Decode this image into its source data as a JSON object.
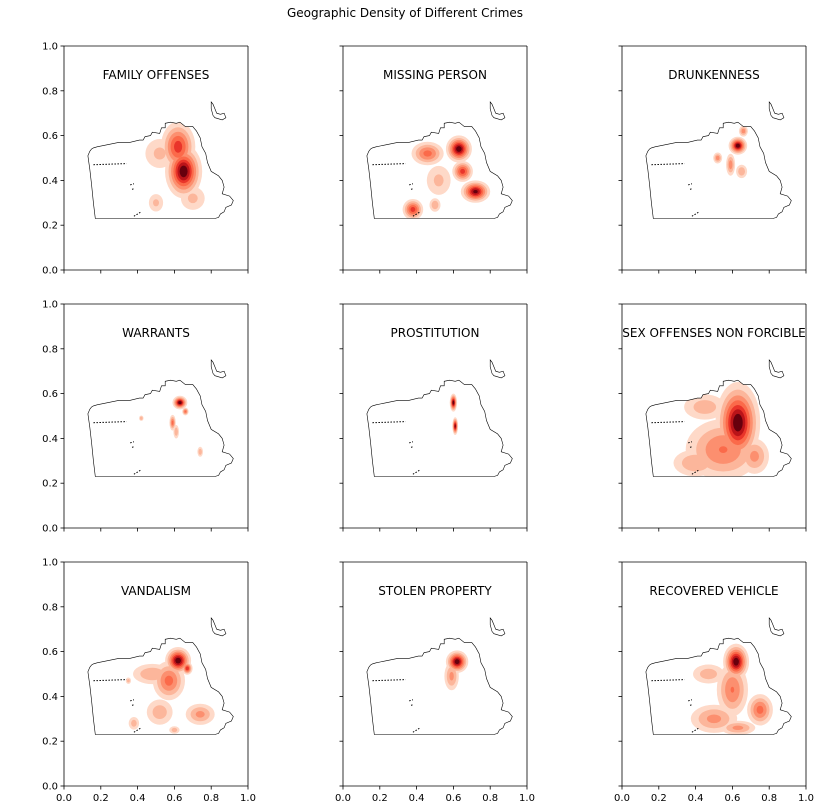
{
  "chart_data": {
    "type": "heatmap",
    "title": "Geographic Density of Different Crimes",
    "layout": {
      "rows": 3,
      "cols": 3,
      "sharex": true,
      "sharey": true
    },
    "xlim": [
      0,
      1
    ],
    "ylim": [
      0,
      1
    ],
    "xticks": [
      "0.0",
      "0.2",
      "0.4",
      "0.6",
      "0.8",
      "1.0"
    ],
    "yticks": [
      "0.0",
      "0.2",
      "0.4",
      "0.6",
      "0.8",
      "1.0"
    ],
    "colormap": {
      "name": "Reds",
      "light": "#fee0d2",
      "mid": "#fb6a4a",
      "dark": "#67000d"
    },
    "outline_color": "#000000",
    "panels": [
      {
        "title": "FAMILY OFFENSES",
        "hotspots": [
          {
            "x": 0.62,
            "y": 0.55,
            "sx": 0.05,
            "sy": 0.06,
            "w": 0.75
          },
          {
            "x": 0.65,
            "y": 0.44,
            "sx": 0.05,
            "sy": 0.06,
            "w": 1.0
          },
          {
            "x": 0.52,
            "y": 0.52,
            "sx": 0.06,
            "sy": 0.05,
            "w": 0.3
          },
          {
            "x": 0.5,
            "y": 0.3,
            "sx": 0.03,
            "sy": 0.03,
            "w": 0.3
          },
          {
            "x": 0.7,
            "y": 0.32,
            "sx": 0.05,
            "sy": 0.04,
            "w": 0.3
          }
        ]
      },
      {
        "title": "MISSING PERSON",
        "hotspots": [
          {
            "x": 0.63,
            "y": 0.54,
            "sx": 0.035,
            "sy": 0.03,
            "w": 1.0
          },
          {
            "x": 0.46,
            "y": 0.52,
            "sx": 0.05,
            "sy": 0.03,
            "w": 0.6
          },
          {
            "x": 0.65,
            "y": 0.44,
            "sx": 0.03,
            "sy": 0.025,
            "w": 0.75
          },
          {
            "x": 0.72,
            "y": 0.35,
            "sx": 0.04,
            "sy": 0.025,
            "w": 0.95
          },
          {
            "x": 0.38,
            "y": 0.27,
            "sx": 0.03,
            "sy": 0.025,
            "w": 0.75
          },
          {
            "x": 0.52,
            "y": 0.4,
            "sx": 0.05,
            "sy": 0.05,
            "w": 0.3
          },
          {
            "x": 0.5,
            "y": 0.29,
            "sx": 0.02,
            "sy": 0.02,
            "w": 0.4
          }
        ]
      },
      {
        "title": "DRUNKENNESS",
        "hotspots": [
          {
            "x": 0.63,
            "y": 0.555,
            "sx": 0.025,
            "sy": 0.02,
            "w": 1.0
          },
          {
            "x": 0.66,
            "y": 0.62,
            "sx": 0.015,
            "sy": 0.015,
            "w": 0.5
          },
          {
            "x": 0.52,
            "y": 0.5,
            "sx": 0.015,
            "sy": 0.015,
            "w": 0.5
          },
          {
            "x": 0.59,
            "y": 0.47,
            "sx": 0.015,
            "sy": 0.03,
            "w": 0.5
          },
          {
            "x": 0.65,
            "y": 0.44,
            "sx": 0.02,
            "sy": 0.02,
            "w": 0.4
          }
        ]
      },
      {
        "title": "WARRANTS",
        "hotspots": [
          {
            "x": 0.63,
            "y": 0.56,
            "sx": 0.02,
            "sy": 0.015,
            "w": 1.0
          },
          {
            "x": 0.59,
            "y": 0.47,
            "sx": 0.01,
            "sy": 0.02,
            "w": 0.6
          },
          {
            "x": 0.66,
            "y": 0.52,
            "sx": 0.01,
            "sy": 0.01,
            "w": 0.6
          },
          {
            "x": 0.61,
            "y": 0.43,
            "sx": 0.01,
            "sy": 0.02,
            "w": 0.4
          },
          {
            "x": 0.74,
            "y": 0.34,
            "sx": 0.01,
            "sy": 0.015,
            "w": 0.4
          },
          {
            "x": 0.42,
            "y": 0.49,
            "sx": 0.008,
            "sy": 0.008,
            "w": 0.4
          }
        ]
      },
      {
        "title": "PROSTITUTION",
        "hotspots": [
          {
            "x": 0.6,
            "y": 0.56,
            "sx": 0.01,
            "sy": 0.02,
            "w": 1.0
          },
          {
            "x": 0.61,
            "y": 0.455,
            "sx": 0.008,
            "sy": 0.02,
            "w": 0.95
          }
        ]
      },
      {
        "title": "SEX OFFENSES NON FORCIBLE",
        "hotspots": [
          {
            "x": 0.63,
            "y": 0.47,
            "sx": 0.06,
            "sy": 0.09,
            "w": 1.0
          },
          {
            "x": 0.55,
            "y": 0.35,
            "sx": 0.12,
            "sy": 0.08,
            "w": 0.55
          },
          {
            "x": 0.4,
            "y": 0.29,
            "sx": 0.08,
            "sy": 0.04,
            "w": 0.4
          },
          {
            "x": 0.45,
            "y": 0.54,
            "sx": 0.08,
            "sy": 0.04,
            "w": 0.35
          },
          {
            "x": 0.72,
            "y": 0.32,
            "sx": 0.05,
            "sy": 0.05,
            "w": 0.45
          }
        ]
      },
      {
        "title": "VANDALISM",
        "hotspots": [
          {
            "x": 0.62,
            "y": 0.56,
            "sx": 0.035,
            "sy": 0.03,
            "w": 1.0
          },
          {
            "x": 0.67,
            "y": 0.525,
            "sx": 0.015,
            "sy": 0.015,
            "w": 0.8
          },
          {
            "x": 0.57,
            "y": 0.47,
            "sx": 0.05,
            "sy": 0.05,
            "w": 0.6
          },
          {
            "x": 0.48,
            "y": 0.5,
            "sx": 0.07,
            "sy": 0.03,
            "w": 0.4
          },
          {
            "x": 0.74,
            "y": 0.32,
            "sx": 0.05,
            "sy": 0.03,
            "w": 0.45
          },
          {
            "x": 0.52,
            "y": 0.33,
            "sx": 0.05,
            "sy": 0.04,
            "w": 0.35
          },
          {
            "x": 0.38,
            "y": 0.28,
            "sx": 0.02,
            "sy": 0.02,
            "w": 0.35
          },
          {
            "x": 0.6,
            "y": 0.25,
            "sx": 0.02,
            "sy": 0.012,
            "w": 0.35
          },
          {
            "x": 0.35,
            "y": 0.47,
            "sx": 0.01,
            "sy": 0.01,
            "w": 0.35
          }
        ]
      },
      {
        "title": "STOLEN PROPERTY",
        "hotspots": [
          {
            "x": 0.62,
            "y": 0.555,
            "sx": 0.03,
            "sy": 0.025,
            "w": 1.0
          },
          {
            "x": 0.59,
            "y": 0.49,
            "sx": 0.025,
            "sy": 0.04,
            "w": 0.45
          }
        ]
      },
      {
        "title": "RECOVERED VEHICLE",
        "hotspots": [
          {
            "x": 0.62,
            "y": 0.555,
            "sx": 0.035,
            "sy": 0.04,
            "w": 1.0
          },
          {
            "x": 0.6,
            "y": 0.43,
            "sx": 0.05,
            "sy": 0.07,
            "w": 0.55
          },
          {
            "x": 0.75,
            "y": 0.34,
            "sx": 0.04,
            "sy": 0.04,
            "w": 0.6
          },
          {
            "x": 0.5,
            "y": 0.3,
            "sx": 0.08,
            "sy": 0.04,
            "w": 0.45
          },
          {
            "x": 0.63,
            "y": 0.26,
            "sx": 0.06,
            "sy": 0.02,
            "w": 0.45
          },
          {
            "x": 0.47,
            "y": 0.5,
            "sx": 0.06,
            "sy": 0.03,
            "w": 0.35
          }
        ]
      }
    ]
  }
}
